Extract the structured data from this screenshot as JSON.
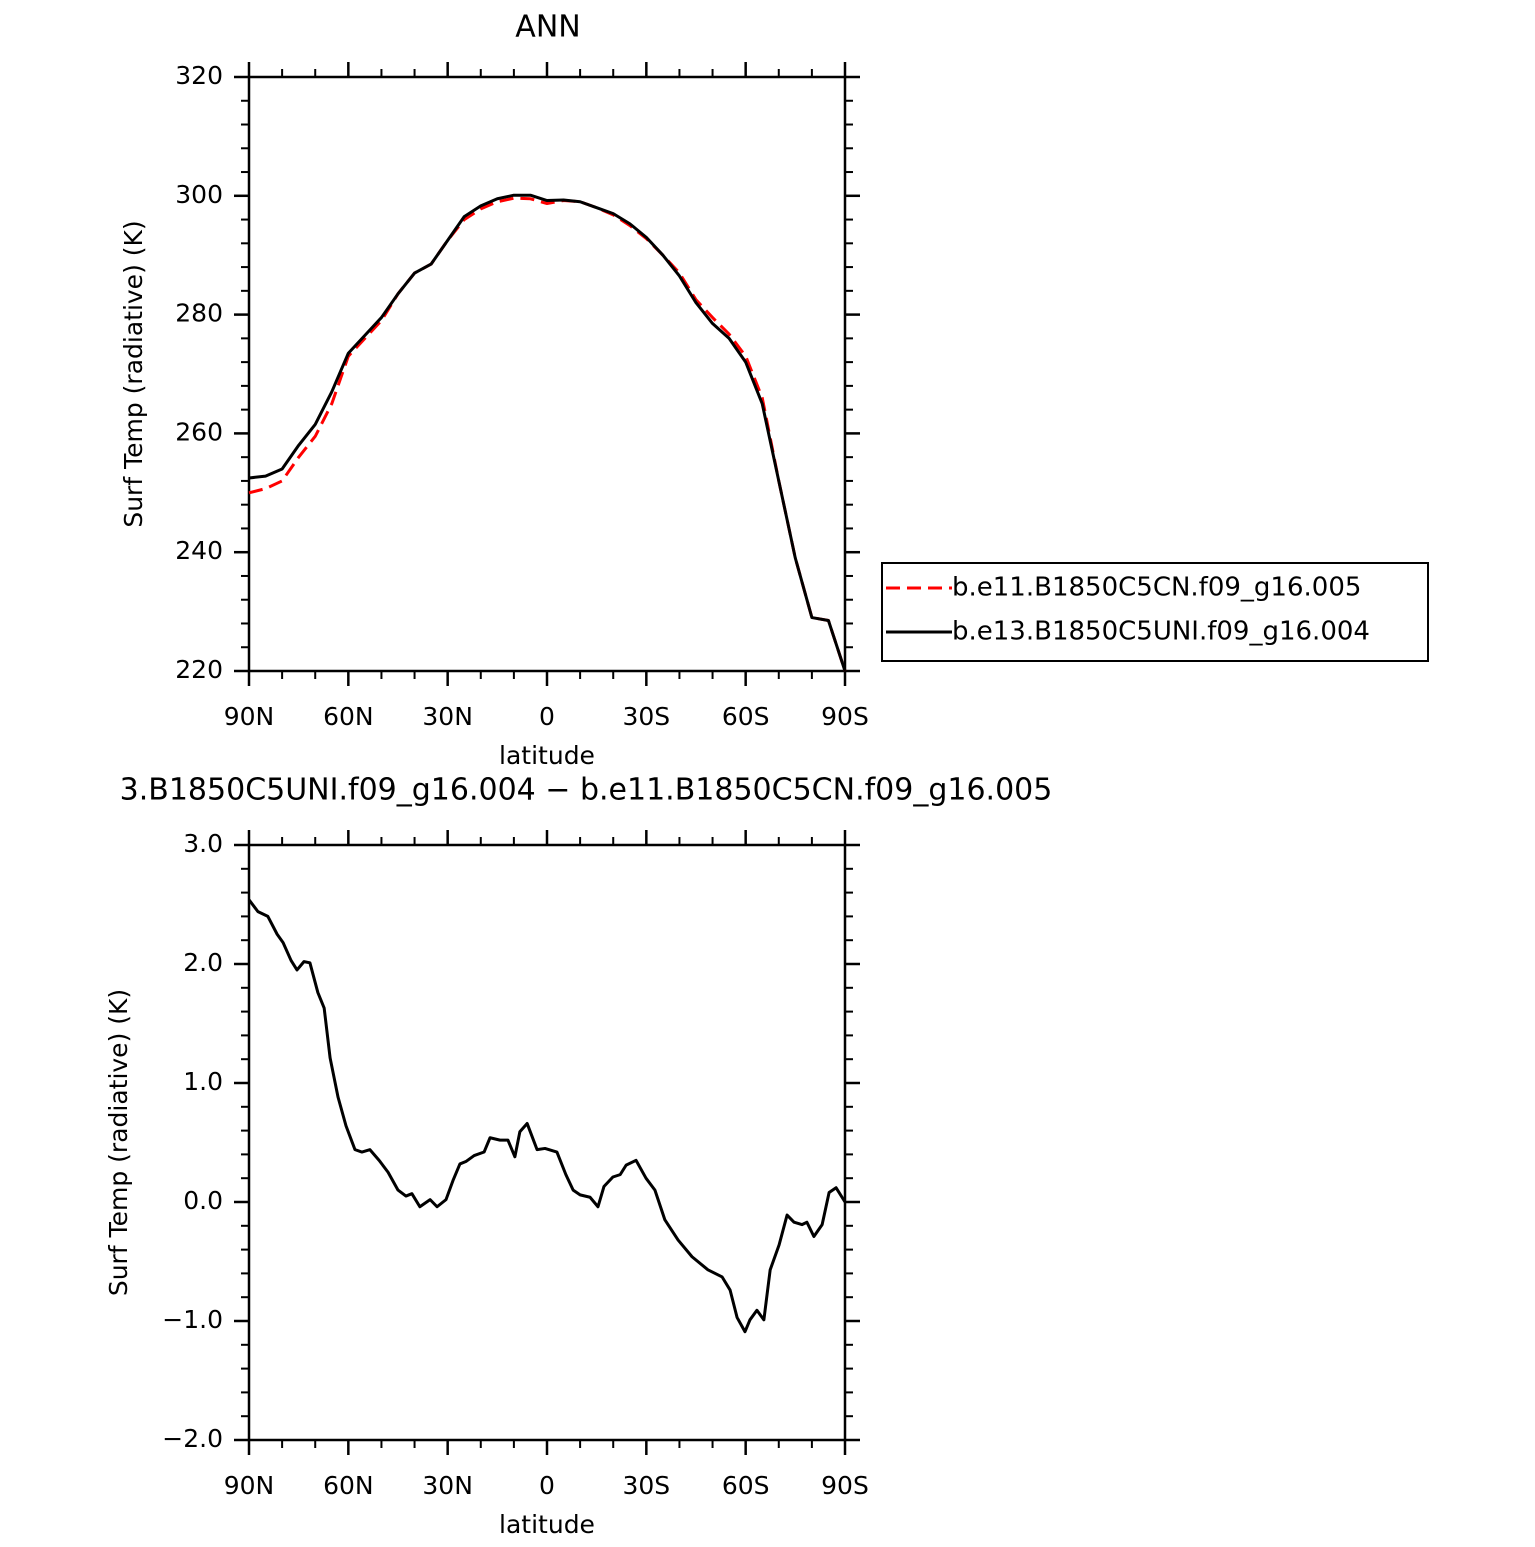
{
  "chart_data": [
    {
      "type": "line",
      "title": "ANN",
      "xlabel": "latitude",
      "ylabel": "Surf Temp (radiative) (K)",
      "x": [
        90,
        85,
        80,
        75,
        70,
        65,
        60,
        55,
        50,
        45,
        40,
        35,
        30,
        25,
        20,
        15,
        10,
        5,
        0,
        -5,
        -10,
        -15,
        -20,
        -25,
        -30,
        -35,
        -40,
        -45,
        -50,
        -55,
        -60,
        -65,
        -70,
        -75,
        -80,
        -85,
        -90
      ],
      "series": [
        {
          "name": "b.e11.B1850C5CN.f09_g16.005",
          "color": "#ff0000",
          "linestyle": "dashed",
          "values": [
            250,
            250.7,
            252,
            256,
            259.5,
            265,
            273,
            276,
            279,
            283.5,
            287,
            288.5,
            292.5,
            296,
            297.8,
            299,
            299.6,
            299.5,
            298.7,
            299.2,
            299,
            298,
            296.8,
            295,
            292.8,
            290,
            287,
            282.5,
            279.5,
            276.7,
            273,
            266,
            252,
            239,
            229,
            228.5,
            220
          ]
        },
        {
          "name": "b.e13.B1850C5UNI.f09_g16.004",
          "color": "#000000",
          "linestyle": "solid",
          "values": [
            252.5,
            252.8,
            254,
            258,
            261.5,
            267,
            273.5,
            276.5,
            279.5,
            283.5,
            287,
            288.5,
            292.5,
            296.5,
            298.3,
            299.5,
            300.1,
            300.1,
            299.2,
            299.3,
            299,
            298,
            297,
            295.3,
            293,
            290,
            286.5,
            282,
            278.5,
            276,
            272,
            265,
            252,
            239,
            229,
            228.5,
            220
          ]
        }
      ],
      "xlim": [
        90,
        -90
      ],
      "xticks": [
        {
          "value": 90,
          "label": "90N"
        },
        {
          "value": 60,
          "label": "60N"
        },
        {
          "value": 30,
          "label": "30N"
        },
        0,
        {
          "value": -30,
          "label": "30S"
        },
        {
          "value": -60,
          "label": "60S"
        },
        {
          "value": -90,
          "label": "90S"
        }
      ],
      "ylim": [
        220,
        320
      ],
      "yticks": [
        220,
        240,
        260,
        280,
        300,
        320
      ],
      "legend": "outside-right"
    },
    {
      "type": "line",
      "title": "3.B1850C5UNI.f09_g16.004 − b.e11.B1850C5CN.f09_g16.005",
      "xlabel": "latitude",
      "ylabel": "Surf Temp (radiative) (K)",
      "x": [
        90,
        87.3,
        84.3,
        81.5,
        79.7,
        77.3,
        75.5,
        73.4,
        71.6,
        69.2,
        67.3,
        65.5,
        63.1,
        60.7,
        58,
        55.9,
        53.5,
        50.7,
        48,
        45,
        42.6,
        40.8,
        38.4,
        35.3,
        33.2,
        30.5,
        28.4,
        26.3,
        24.5,
        22,
        19,
        17.2,
        14.2,
        11.8,
        9.7,
        8.2,
        6,
        3,
        0.6,
        -3,
        -5.7,
        -7.9,
        -10,
        -13,
        -15.4,
        -17.2,
        -19.9,
        -22.1,
        -23.9,
        -26.9,
        -29.9,
        -32.6,
        -35.6,
        -39.6,
        -43.8,
        -48.6,
        -52.9,
        -55.3,
        -57.4,
        -59.8,
        -61.3,
        -63.4,
        -65.5,
        -67.4,
        -70.1,
        -72.5,
        -74.6,
        -77,
        -78.5,
        -80.6,
        -83.1,
        -85.2,
        -87.3,
        -90
      ],
      "series": [
        {
          "color": "#000000",
          "linestyle": "solid",
          "values": [
            2.54,
            2.44,
            2.4,
            2.25,
            2.18,
            2.03,
            1.95,
            2.02,
            2.01,
            1.76,
            1.63,
            1.21,
            0.88,
            0.64,
            0.44,
            0.42,
            0.44,
            0.35,
            0.25,
            0.1,
            0.05,
            0.07,
            -0.04,
            0.02,
            -0.04,
            0.02,
            0.18,
            0.32,
            0.34,
            0.39,
            0.42,
            0.54,
            0.52,
            0.52,
            0.38,
            0.59,
            0.66,
            0.44,
            0.45,
            0.42,
            0.23,
            0.1,
            0.06,
            0.04,
            -0.04,
            0.13,
            0.21,
            0.23,
            0.31,
            0.35,
            0.2,
            0.1,
            -0.15,
            -0.32,
            -0.46,
            -0.57,
            -0.63,
            -0.74,
            -0.97,
            -1.09,
            -0.99,
            -0.91,
            -0.99,
            -0.57,
            -0.36,
            -0.11,
            -0.17,
            -0.19,
            -0.17,
            -0.29,
            -0.19,
            0.08,
            0.12,
            0
          ]
        }
      ],
      "xlim": [
        90,
        -90
      ],
      "xticks": [
        {
          "value": 90,
          "label": "90N"
        },
        {
          "value": 60,
          "label": "60N"
        },
        {
          "value": 30,
          "label": "30N"
        },
        0,
        {
          "value": -30,
          "label": "30S"
        },
        {
          "value": -60,
          "label": "60S"
        },
        {
          "value": -90,
          "label": "90S"
        }
      ],
      "ylim": [
        -2,
        3
      ],
      "yticks": [
        {
          "value": -2,
          "label": "−2.0"
        },
        {
          "value": -1,
          "label": "−1.0"
        },
        {
          "value": 0,
          "label": "0.0"
        },
        {
          "value": 1,
          "label": "1.0"
        },
        {
          "value": 2,
          "label": "2.0"
        },
        {
          "value": 3,
          "label": "3.0"
        }
      ]
    }
  ]
}
